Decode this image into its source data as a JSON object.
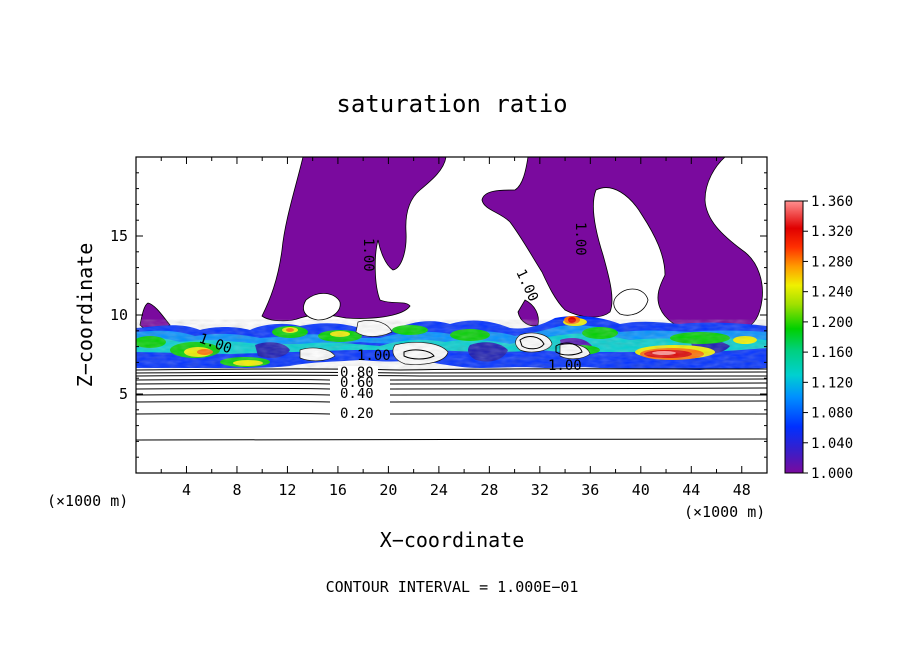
{
  "chart_data": {
    "type": "heatmap",
    "title": "saturation ratio",
    "xlabel": "X−coordinate",
    "ylabel": "Z−coordinate",
    "x_unit": "(×1000 m)",
    "y_unit": "(×1000 m)",
    "x_ticks": [
      "4",
      "8",
      "12",
      "16",
      "20",
      "24",
      "28",
      "32",
      "36",
      "40",
      "44",
      "48"
    ],
    "y_ticks": [
      "5",
      "10",
      "15"
    ],
    "xlim": [
      0,
      50
    ],
    "ylim": [
      0,
      20
    ],
    "footer": "CONTOUR INTERVAL = 1.000E−01",
    "colorbar": {
      "min": 1.0,
      "max": 1.36,
      "labels": [
        "1.360",
        "1.320",
        "1.280",
        "1.240",
        "1.200",
        "1.160",
        "1.120",
        "1.080",
        "1.040",
        "1.000"
      ]
    },
    "contour_labels": [
      {
        "text": "0.20",
        "x": 17.7,
        "z": 3.7
      },
      {
        "text": "0.40",
        "x": 17.7,
        "z": 4.9
      },
      {
        "text": "0.60",
        "x": 17.7,
        "z": 5.7
      },
      {
        "text": "0.80",
        "x": 17.7,
        "z": 6.4
      },
      {
        "text": "1.00",
        "x": 18.5,
        "z": 7.1
      },
      {
        "text": "1.00",
        "x": 5.5,
        "z": 8.3
      },
      {
        "text": "1.00",
        "x": 33.5,
        "z": 6.5
      },
      {
        "text": "1.00",
        "x": 18.5,
        "z": 13.7
      },
      {
        "text": "1.00",
        "x": 30.5,
        "z": 11.7
      },
      {
        "text": "1.00",
        "x": 35.3,
        "z": 15.3
      }
    ],
    "colors": {
      "background": "#ffffff",
      "subsaturated_region": "#ffffff",
      "supersaturation_min": "#7a0a9e"
    }
  }
}
